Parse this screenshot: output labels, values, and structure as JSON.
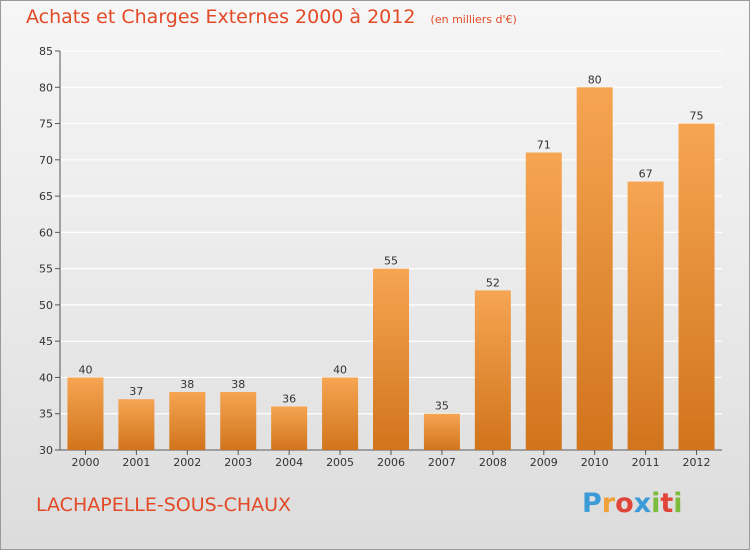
{
  "title": "Achats et Charges Externes 2000 à 2012",
  "subtitle": "(en milliers d'€)",
  "commune": "LACHAPELLE-SOUS-CHAUX",
  "brand": {
    "text": "Proxiti",
    "letter_colors": [
      "#3b9ad8",
      "#f0a13a",
      "#e0453a",
      "#3b9ad8",
      "#7dbb3c",
      "#e0453a",
      "#7dbb3c"
    ]
  },
  "colors": {
    "title": "#e24a27",
    "bar_top": "#f6a552",
    "bar_bottom": "#d1741c",
    "grid": "#ffffff"
  },
  "chart_data": {
    "type": "bar",
    "categories": [
      "2000",
      "2001",
      "2002",
      "2003",
      "2004",
      "2005",
      "2006",
      "2007",
      "2008",
      "2009",
      "2010",
      "2011",
      "2012"
    ],
    "values": [
      40,
      37,
      38,
      38,
      36,
      40,
      55,
      35,
      52,
      71,
      80,
      67,
      75
    ],
    "ylim": [
      30,
      85
    ],
    "yticks": [
      30,
      35,
      40,
      45,
      50,
      55,
      60,
      65,
      70,
      75,
      80,
      85
    ],
    "grid": true,
    "data_labels": true
  }
}
